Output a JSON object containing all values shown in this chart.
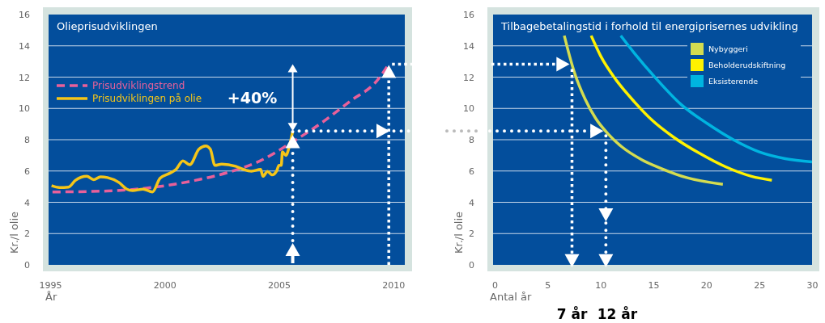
{
  "chart_data": [
    {
      "type": "line",
      "title": "Olieprisudviklingen",
      "xlabel": "År",
      "ylabel": "Kr./l olie",
      "xlim": [
        1995,
        2010.5
      ],
      "xticks": [
        1995,
        2000,
        2005,
        2010
      ],
      "ylim": [
        0,
        16
      ],
      "yticks": [
        0,
        2,
        4,
        6,
        8,
        10,
        12,
        14,
        16
      ],
      "grid": "y",
      "legend": "top left",
      "series": [
        {
          "name": "Prisudviklingstrend",
          "color": "#e8609a",
          "line_style": "dashed",
          "x": [
            1995.1,
            1997.5,
            1999.4,
            2001.06,
            2002.8,
            2004.0,
            2005.65,
            2006.9,
            2008.1,
            2009.3,
            2009.8
          ],
          "values": [
            4.66,
            4.72,
            4.94,
            5.32,
            5.92,
            6.53,
            7.91,
            9.12,
            10.45,
            11.8,
            12.83
          ]
        },
        {
          "name": "Prisudviklingen på olie",
          "color": "#f5c518",
          "line_style": "solid",
          "x": [
            1995.06,
            1995.4,
            1995.8,
            1996.1,
            1996.6,
            1996.9,
            1997.2,
            1997.5,
            1998.0,
            1998.35,
            1998.6,
            1999.06,
            1999.47,
            1999.8,
            2000.2,
            2000.5,
            2000.8,
            2001.1,
            2001.5,
            2001.8,
            2002.0,
            2002.2,
            2002.5,
            2003.1,
            2003.4,
            2003.8,
            2004.2,
            2004.3,
            2004.5,
            2004.7,
            2004.9,
            2005.0,
            2005.1,
            2005.15,
            2005.3,
            2005.45,
            2005.6
          ],
          "values": [
            5.06,
            4.94,
            4.97,
            5.4,
            5.66,
            5.44,
            5.63,
            5.58,
            5.27,
            4.84,
            4.75,
            4.84,
            4.66,
            5.54,
            5.84,
            6.1,
            6.65,
            6.4,
            7.39,
            7.6,
            7.39,
            6.36,
            6.44,
            6.3,
            6.13,
            5.99,
            6.1,
            5.66,
            5.98,
            5.75,
            6.01,
            6.36,
            6.36,
            7.22,
            7.0,
            7.56,
            8.55
          ]
        }
      ],
      "annotations": [
        "+40%"
      ]
    },
    {
      "type": "line",
      "title": "Tilbagebetalingstid i forhold til energiprisernes udvikling",
      "xlabel": "Antal år",
      "ylabel": "Kr./l olie",
      "xlim": [
        0,
        30
      ],
      "xticks": [
        0,
        5,
        10,
        15,
        20,
        25,
        30
      ],
      "ylim": [
        0,
        16
      ],
      "yticks": [
        0,
        2,
        4,
        6,
        8,
        10,
        12,
        14,
        16
      ],
      "grid": "y",
      "legend": "top right",
      "series": [
        {
          "name": "Nybyggeri",
          "color": "#d4dc50",
          "line_style": "solid",
          "x": [
            6.58,
            7.08,
            7.57,
            8.55,
            9.53,
            10.76,
            11.99,
            13.96,
            15.68,
            18.13,
            21.57
          ],
          "values": [
            14.65,
            13.35,
            12.23,
            10.59,
            9.38,
            8.34,
            7.56,
            6.7,
            6.18,
            5.58,
            5.15
          ]
        },
        {
          "name": "Beholderudskiftning",
          "color": "#fff200",
          "line_style": "solid",
          "x": [
            9.12,
            10.02,
            11.5,
            13.22,
            14.94,
            16.9,
            19.36,
            21.82,
            24.28,
            26.2
          ],
          "values": [
            14.65,
            13.35,
            11.8,
            10.41,
            9.21,
            8.17,
            7.13,
            6.27,
            5.66,
            5.41
          ]
        },
        {
          "name": "Eksisterende",
          "color": "#00b4e0",
          "line_style": "solid",
          "x": [
            11.92,
            13.22,
            15.18,
            17.64,
            20.1,
            22.56,
            25.01,
            27.47,
            30
          ],
          "values": [
            14.65,
            13.52,
            11.97,
            10.24,
            9.03,
            8.0,
            7.22,
            6.79,
            6.58
          ]
        }
      ],
      "annotations": [
        "7 år",
        "12 år"
      ]
    }
  ]
}
